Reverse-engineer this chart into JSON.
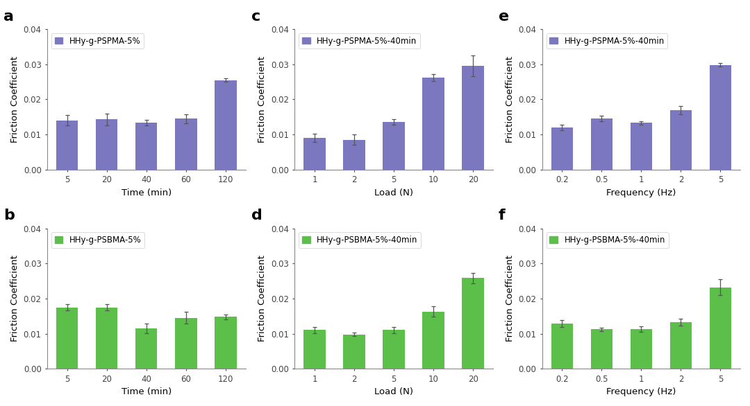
{
  "panel_a": {
    "label": "a",
    "legend": "HHy-g-PSPMA-5%",
    "color": "#7B78C0",
    "xlabel": "Time (min)",
    "xtick_labels": [
      "5",
      "20",
      "40",
      "60",
      "120"
    ],
    "values": [
      0.014,
      0.0143,
      0.0133,
      0.0145,
      0.0255
    ],
    "errors": [
      0.0015,
      0.0017,
      0.0008,
      0.0013,
      0.0005
    ],
    "ylim": [
      0,
      0.04
    ]
  },
  "panel_b": {
    "label": "b",
    "legend": "HHy-g-PSBMA-5%",
    "color": "#5BBF4A",
    "xlabel": "Time (min)",
    "xtick_labels": [
      "5",
      "20",
      "40",
      "60",
      "120"
    ],
    "values": [
      0.0175,
      0.0175,
      0.0115,
      0.0145,
      0.0148
    ],
    "errors": [
      0.0008,
      0.0008,
      0.0013,
      0.0017,
      0.0007
    ],
    "ylim": [
      0,
      0.04
    ]
  },
  "panel_c": {
    "label": "c",
    "legend": "HHy-g-PSPMA-5%-40min",
    "color": "#7B78C0",
    "xlabel": "Load (N)",
    "xtick_labels": [
      "1",
      "2",
      "5",
      "10",
      "20"
    ],
    "values": [
      0.009,
      0.0085,
      0.0135,
      0.0262,
      0.0295
    ],
    "errors": [
      0.0012,
      0.0015,
      0.0008,
      0.001,
      0.003
    ],
    "ylim": [
      0,
      0.04
    ]
  },
  "panel_d": {
    "label": "d",
    "legend": "HHy-g-PSBMA-5%-40min",
    "color": "#5BBF4A",
    "xlabel": "Load (N)",
    "xtick_labels": [
      "1",
      "2",
      "5",
      "10",
      "20"
    ],
    "values": [
      0.011,
      0.0098,
      0.011,
      0.0163,
      0.0258
    ],
    "errors": [
      0.0008,
      0.0005,
      0.0008,
      0.0015,
      0.0015
    ],
    "ylim": [
      0,
      0.04
    ]
  },
  "panel_e": {
    "label": "e",
    "legend": "HHy-g-PSPMA-5%-40min",
    "color": "#7B78C0",
    "xlabel": "Frequency (Hz)",
    "xtick_labels": [
      "0.2",
      "0.5",
      "1",
      "2",
      "5"
    ],
    "values": [
      0.012,
      0.0145,
      0.0133,
      0.017,
      0.0298
    ],
    "errors": [
      0.0008,
      0.0008,
      0.0005,
      0.0012,
      0.0005
    ],
    "ylim": [
      0,
      0.04
    ]
  },
  "panel_f": {
    "label": "f",
    "legend": "HHy-g-PSBMA-5%-40min",
    "color": "#5BBF4A",
    "xlabel": "Frequency (Hz)",
    "xtick_labels": [
      "0.2",
      "0.5",
      "1",
      "2",
      "5"
    ],
    "values": [
      0.0128,
      0.0112,
      0.0113,
      0.0132,
      0.0232
    ],
    "errors": [
      0.001,
      0.0005,
      0.0008,
      0.001,
      0.0023
    ],
    "ylim": [
      0,
      0.04
    ]
  },
  "ylabel": "Friction Coefficient",
  "yticks": [
    0.0,
    0.01,
    0.02,
    0.03,
    0.04
  ],
  "ytick_labels": [
    "0.00",
    "0.01",
    "0.02",
    "0.03",
    "0.04"
  ],
  "background_color": "#FFFFFF",
  "bar_width": 0.55,
  "label_fontsize": 16,
  "tick_fontsize": 8.5,
  "legend_fontsize": 8.5,
  "axis_label_fontsize": 9.5
}
